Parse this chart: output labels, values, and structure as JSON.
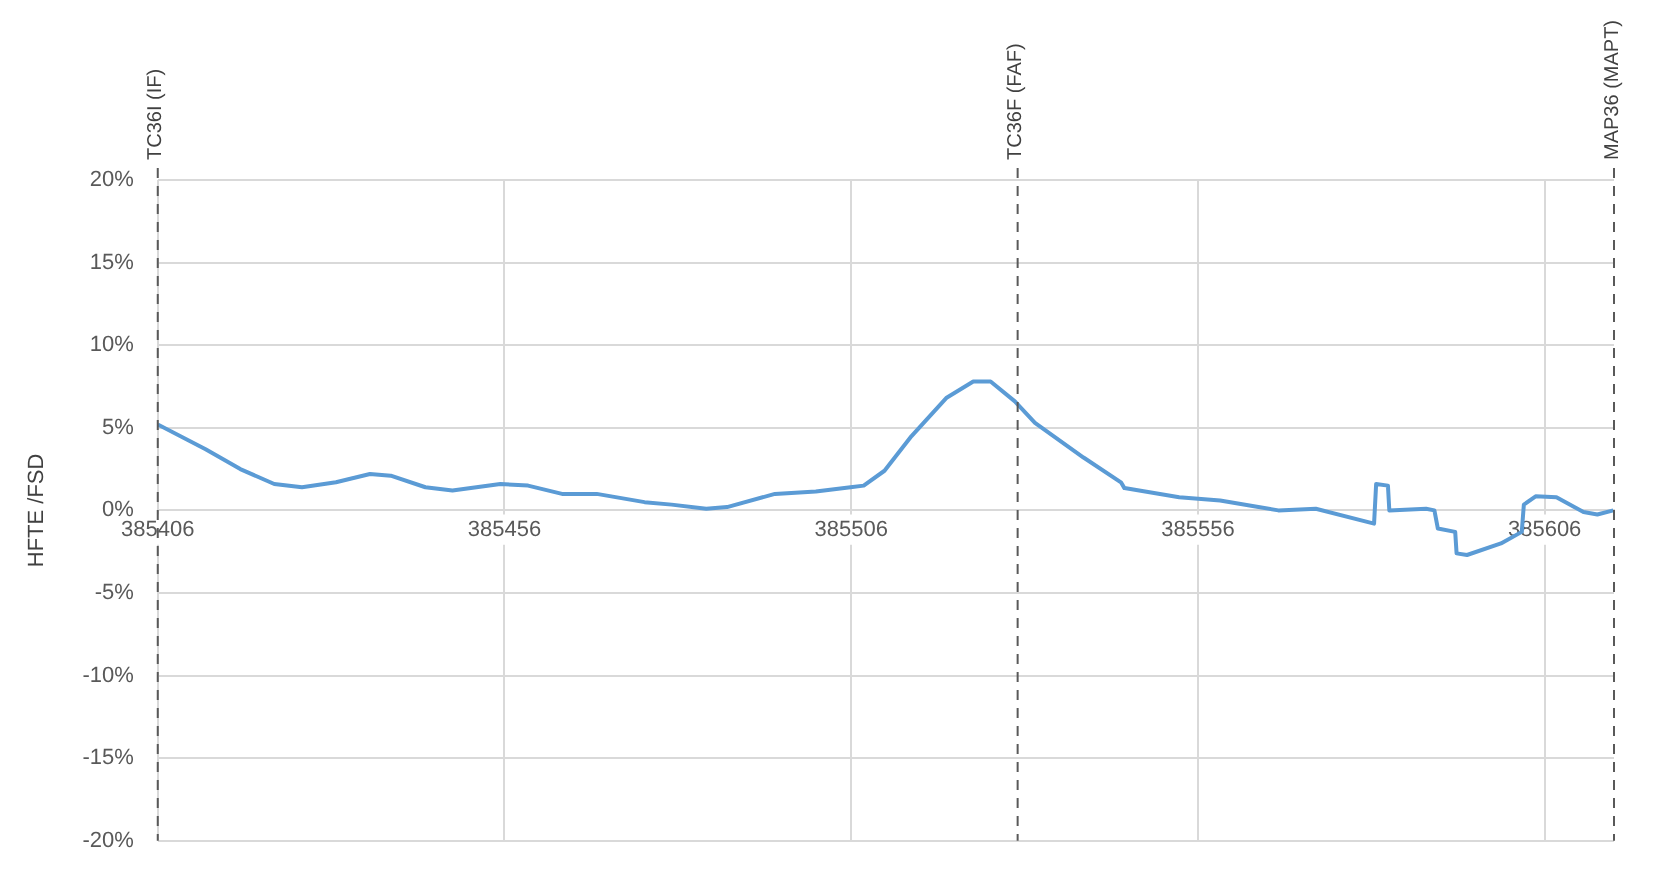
{
  "chart_data": {
    "type": "line",
    "ylabel": "HFTE /FSD",
    "xlim": [
      385406,
      385616
    ],
    "xticks": [
      385406,
      385456,
      385506,
      385556,
      385606
    ],
    "ylim": [
      -20,
      20
    ],
    "yticks": [
      {
        "value": -20,
        "label": "-20%"
      },
      {
        "value": -15,
        "label": "-15%"
      },
      {
        "value": -10,
        "label": "-10%"
      },
      {
        "value": -5,
        "label": "-5%"
      },
      {
        "value": 0,
        "label": "0%"
      },
      {
        "value": 5,
        "label": "5%"
      },
      {
        "value": 10,
        "label": "10%"
      },
      {
        "value": 15,
        "label": "15%"
      },
      {
        "value": 20,
        "label": "20%"
      }
    ],
    "grid": true,
    "marker": "none",
    "line_style": "solid",
    "series": [
      {
        "color": "#5b9bd5",
        "x": [
          385406,
          385412.9,
          385417.9,
          385422.8,
          385426.8,
          385431.7,
          385436.6,
          385439.6,
          385444.6,
          385448.5,
          385455.4,
          385459.4,
          385464.3,
          385469.3,
          385476.2,
          385480.1,
          385485.1,
          385488.1,
          385495,
          385500.9,
          385505.9,
          385507.8,
          385510.8,
          385514.7,
          385519.7,
          385523.6,
          385526.1,
          385529.6,
          385532.5,
          385539.5,
          385544.9,
          385545.4,
          385553.3,
          385559.2,
          385567.6,
          385573,
          385581.4,
          385581.7,
          385583.4,
          385583.6,
          385588.9,
          385590.1,
          385590.6,
          385593.1,
          385593.3,
          385594.8,
          385599.7,
          385602.7,
          385603,
          385604.7,
          385607.7,
          385611.6,
          385613.6,
          385615.9
        ],
        "values": [
          5.2,
          3.7,
          2.5,
          1.6,
          1.4,
          1.7,
          2.2,
          2.1,
          1.4,
          1.2,
          1.6,
          1.5,
          1.0,
          1.0,
          0.5,
          0.35,
          0.1,
          0.2,
          1.0,
          1.15,
          1.4,
          1.5,
          2.4,
          4.5,
          6.8,
          7.8,
          7.8,
          6.6,
          5.3,
          3.2,
          1.7,
          1.35,
          0.8,
          0.6,
          0.0,
          0.1,
          -0.8,
          1.6,
          1.5,
          0.0,
          0.1,
          0.0,
          -1.1,
          -1.3,
          -2.6,
          -2.7,
          -2.0,
          -1.3,
          0.35,
          0.85,
          0.8,
          -0.1,
          -0.25,
          0.0
        ]
      }
    ],
    "ref_lines": [
      {
        "axis": "x",
        "value": 385406,
        "label": "TC36I (IF)",
        "color": "#595959",
        "line_style": "dashed"
      },
      {
        "axis": "x",
        "value": 385530,
        "label": "TC36F (FAF)",
        "color": "#595959",
        "line_style": "dashed"
      },
      {
        "axis": "x",
        "value": 385616,
        "label": "MAP36 (MAPT)",
        "color": "#595959",
        "line_style": "dashed"
      }
    ]
  }
}
